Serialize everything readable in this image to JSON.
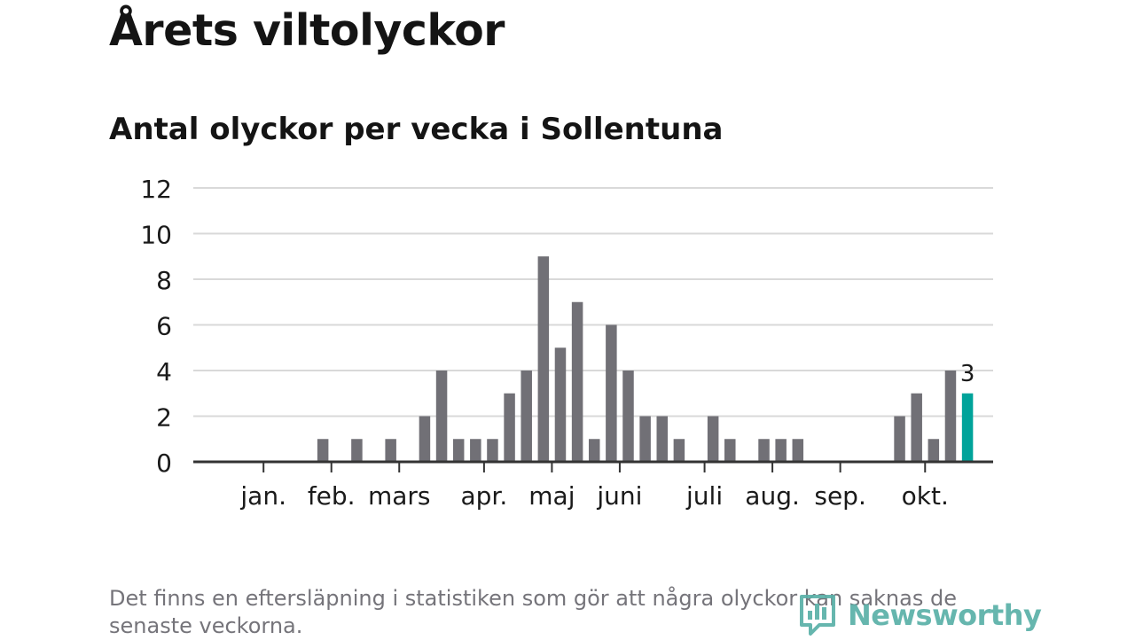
{
  "title": "Årets viltolyckor",
  "subtitle": "Antal olyckor per vecka i Sollentuna",
  "footnote": "Det finns en eftersläpning i statistiken som gör att några olyckor kan saknas de senaste veckorna.",
  "brand": "Newsworthy",
  "colors": {
    "bar": "#717076",
    "highlight": "#00a39a",
    "grid": "#d9d9d9",
    "axis": "#333333",
    "text": "#1a1a1a",
    "brand": "#5ab0a8"
  },
  "chart_data": {
    "type": "bar",
    "title": "Antal olyckor per vecka i Sollentuna",
    "ylim": [
      0,
      12
    ],
    "y_ticks": [
      0,
      2,
      4,
      6,
      8,
      10,
      12
    ],
    "grid": true,
    "month_labels": [
      "jan.",
      "feb.",
      "mars",
      "apr.",
      "maj",
      "juni",
      "juli",
      "aug.",
      "sep.",
      "okt."
    ],
    "month_label_weeks": [
      2.5,
      6.5,
      10.5,
      15.5,
      19.5,
      23.5,
      28.5,
      32.5,
      36.5,
      41.5
    ],
    "month_tick_weeks": [
      2.5,
      6.5,
      10.5,
      15.5,
      19.5,
      23.5,
      28.5,
      32.5,
      36.5,
      41.5
    ],
    "weeks": [
      1,
      2,
      3,
      4,
      5,
      6,
      7,
      8,
      9,
      10,
      11,
      12,
      13,
      14,
      15,
      16,
      17,
      18,
      19,
      20,
      21,
      22,
      23,
      24,
      25,
      26,
      27,
      28,
      29,
      30,
      31,
      32,
      33,
      34,
      35,
      36,
      37,
      38,
      39,
      40,
      41,
      42,
      43,
      44
    ],
    "values": [
      0,
      0,
      0,
      0,
      0,
      1,
      0,
      1,
      0,
      1,
      0,
      2,
      4,
      1,
      1,
      1,
      3,
      4,
      9,
      5,
      7,
      1,
      6,
      4,
      2,
      2,
      1,
      0,
      2,
      1,
      0,
      1,
      1,
      1,
      0,
      0,
      0,
      0,
      0,
      2,
      3,
      1,
      4,
      3
    ],
    "highlight_index": 43,
    "highlight_label": "3"
  }
}
